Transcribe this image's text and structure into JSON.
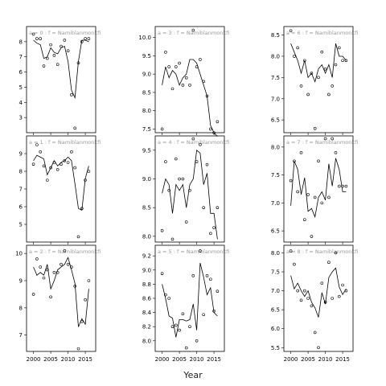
{
  "xlabel": "Year",
  "chart_data": [
    {
      "type": "scatter",
      "title": "a = 0  :  f = Namiblanmonkfi",
      "xlim": [
        1998,
        2018
      ],
      "ylim": [
        2,
        9
      ],
      "xticks": [
        2000,
        2005,
        2010,
        2015
      ],
      "yticks": [
        3,
        4,
        5,
        6,
        7,
        8
      ],
      "points": {
        "x": [
          2000,
          2001,
          2002,
          2003,
          2004,
          2005,
          2006,
          2007,
          2008,
          2009,
          2010,
          2011,
          2012,
          2013,
          2014,
          2015,
          2016
        ],
        "y": [
          8.5,
          8.2,
          8.2,
          6.4,
          6.9,
          7.8,
          7.1,
          6.5,
          7.7,
          8.1,
          7.4,
          4.5,
          2.3,
          6.6,
          8.0,
          8.2,
          8.2
        ]
      },
      "fit": {
        "x": [
          2000,
          2001,
          2002,
          2003,
          2004,
          2005,
          2006,
          2007,
          2008,
          2009,
          2010,
          2011,
          2012,
          2013,
          2014,
          2015,
          2016
        ],
        "y": [
          8.1,
          7.9,
          7.8,
          6.9,
          7.0,
          7.6,
          7.3,
          7.2,
          7.6,
          7.7,
          6.7,
          4.8,
          4.3,
          6.7,
          8.1,
          8.1,
          8.0
        ]
      }
    },
    {
      "type": "scatter",
      "title": "a = 3  :  f = Namiblanmonkfi",
      "xlim": [
        1998,
        2018
      ],
      "ylim": [
        7.4,
        10.3
      ],
      "xticks": [
        2000,
        2005,
        2010,
        2015
      ],
      "yticks": [
        7.5,
        8.0,
        8.5,
        9.0,
        9.5,
        10.0
      ],
      "points": {
        "x": [
          2000,
          2001,
          2002,
          2003,
          2004,
          2005,
          2006,
          2007,
          2008,
          2009,
          2010,
          2011,
          2012,
          2013,
          2014,
          2015,
          2016
        ],
        "y": [
          7.5,
          9.6,
          9.2,
          8.6,
          9.2,
          9.3,
          8.7,
          8.9,
          8.7,
          10.2,
          9.2,
          9.4,
          8.8,
          8.4,
          7.5,
          7.4,
          7.7
        ]
      },
      "fit": {
        "x": [
          2000,
          2001,
          2002,
          2003,
          2004,
          2005,
          2006,
          2007,
          2008,
          2009,
          2010,
          2011,
          2012,
          2013,
          2014,
          2015,
          2016
        ],
        "y": [
          8.7,
          9.2,
          8.9,
          9.1,
          9.0,
          8.7,
          8.9,
          9.0,
          9.4,
          9.4,
          9.3,
          9.0,
          8.7,
          8.4,
          7.6,
          7.4,
          7.3
        ]
      }
    },
    {
      "type": "scatter",
      "title": "a = 6  :  f = Namiblanmonkfi",
      "xlim": [
        1998,
        2018
      ],
      "ylim": [
        6.2,
        8.7
      ],
      "xticks": [
        2000,
        2005,
        2010,
        2015
      ],
      "yticks": [
        6.5,
        7.0,
        7.5,
        8.0,
        8.5
      ],
      "points": {
        "x": [
          2000,
          2001,
          2002,
          2003,
          2004,
          2005,
          2006,
          2007,
          2008,
          2009,
          2010,
          2011,
          2012,
          2013,
          2014,
          2015,
          2016
        ],
        "y": [
          8.6,
          8.0,
          8.2,
          7.3,
          7.9,
          7.1,
          7.6,
          6.3,
          7.5,
          8.1,
          7.7,
          7.1,
          7.3,
          7.8,
          8.2,
          7.9,
          7.9
        ]
      },
      "fit": {
        "x": [
          2000,
          2001,
          2002,
          2003,
          2004,
          2005,
          2006,
          2007,
          2008,
          2009,
          2010,
          2011,
          2012,
          2013,
          2014,
          2015,
          2016
        ],
        "y": [
          8.3,
          8.1,
          7.9,
          7.6,
          7.9,
          7.5,
          7.6,
          7.4,
          7.7,
          7.8,
          7.6,
          7.8,
          7.5,
          8.3,
          8.0,
          8.0,
          7.9
        ]
      }
    },
    {
      "type": "scatter",
      "title": "a = 1  :  f = Namiblanmonkfi",
      "xlim": [
        1998,
        2018
      ],
      "ylim": [
        4,
        10
      ],
      "xticks": [
        2000,
        2005,
        2010,
        2015
      ],
      "yticks": [
        5,
        6,
        7,
        8,
        9
      ],
      "points": {
        "x": [
          2000,
          2001,
          2002,
          2003,
          2004,
          2005,
          2006,
          2007,
          2008,
          2009,
          2010,
          2011,
          2012,
          2013,
          2014,
          2015,
          2016
        ],
        "y": [
          8.4,
          9.5,
          9.1,
          8.3,
          7.5,
          8.2,
          8.5,
          8.1,
          8.4,
          8.6,
          8.5,
          9.1,
          8.2,
          4.3,
          5.9,
          7.5,
          8.0
        ]
      },
      "fit": {
        "x": [
          2000,
          2001,
          2002,
          2003,
          2004,
          2005,
          2006,
          2007,
          2008,
          2009,
          2010,
          2011,
          2012,
          2013,
          2014,
          2015,
          2016
        ],
        "y": [
          8.6,
          8.9,
          8.8,
          8.7,
          7.8,
          8.2,
          8.6,
          8.3,
          8.5,
          8.6,
          8.8,
          8.6,
          7.3,
          5.9,
          5.8,
          7.6,
          8.3
        ]
      }
    },
    {
      "type": "scatter",
      "title": "a = 4  :  f = Namiblanmonkfi",
      "xlim": [
        1998,
        2018
      ],
      "ylim": [
        7.9,
        9.75
      ],
      "xticks": [
        2000,
        2005,
        2010,
        2015
      ],
      "yticks": [
        8.0,
        8.5,
        9.0,
        9.5
      ],
      "points": {
        "x": [
          2000,
          2001,
          2002,
          2003,
          2004,
          2005,
          2006,
          2007,
          2008,
          2009,
          2010,
          2011,
          2012,
          2013,
          2014,
          2015,
          2016
        ],
        "y": [
          8.1,
          9.3,
          8.8,
          7.95,
          9.35,
          9.0,
          9.0,
          8.25,
          8.8,
          9.7,
          9.3,
          9.6,
          8.5,
          9.25,
          8.05,
          8.15,
          8.5
        ]
      },
      "fit": {
        "x": [
          2000,
          2001,
          2002,
          2003,
          2004,
          2005,
          2006,
          2007,
          2008,
          2009,
          2010,
          2011,
          2012,
          2013,
          2014,
          2015,
          2016
        ],
        "y": [
          8.75,
          9.0,
          8.9,
          8.4,
          8.9,
          8.8,
          8.9,
          8.5,
          8.9,
          9.0,
          9.5,
          9.45,
          8.9,
          9.1,
          8.4,
          8.4,
          7.95
        ]
      }
    },
    {
      "type": "scatter",
      "title": "a = 7  :  f = Namiblanmonkfi",
      "xlim": [
        1998,
        2018
      ],
      "ylim": [
        6.3,
        8.2
      ],
      "xticks": [
        2000,
        2005,
        2010,
        2015
      ],
      "yticks": [
        6.5,
        7.0,
        7.5,
        8.0
      ],
      "points": {
        "x": [
          2000,
          2001,
          2002,
          2003,
          2004,
          2005,
          2006,
          2007,
          2008,
          2009,
          2010,
          2011,
          2012,
          2013,
          2014,
          2015,
          2016
        ],
        "y": [
          7.4,
          7.75,
          7.2,
          7.9,
          6.7,
          7.15,
          6.4,
          7.1,
          7.75,
          7.0,
          8.15,
          7.1,
          8.15,
          7.9,
          7.3,
          7.3,
          7.3
        ]
      },
      "fit": {
        "x": [
          2000,
          2001,
          2002,
          2003,
          2004,
          2005,
          2006,
          2007,
          2008,
          2009,
          2010,
          2011,
          2012,
          2013,
          2014,
          2015,
          2016
        ],
        "y": [
          6.95,
          7.75,
          7.6,
          7.15,
          7.45,
          6.85,
          6.9,
          6.75,
          7.1,
          7.2,
          7.05,
          7.7,
          7.3,
          7.8,
          7.6,
          7.2,
          7.2
        ]
      }
    },
    {
      "type": "scatter",
      "title": "a = 2  :  f = Namiblanmonkfi",
      "xlim": [
        1998,
        2018
      ],
      "ylim": [
        6.4,
        10.3
      ],
      "xticks": [
        2000,
        2005,
        2010,
        2015
      ],
      "yticks": [
        7,
        8,
        9,
        10
      ],
      "points": {
        "x": [
          2000,
          2001,
          2002,
          2003,
          2004,
          2005,
          2006,
          2007,
          2008,
          2009,
          2010,
          2011,
          2012,
          2013,
          2014,
          2015,
          2016
        ],
        "y": [
          8.5,
          9.8,
          9.5,
          9.1,
          9.4,
          8.4,
          9.3,
          9.3,
          9.6,
          10.1,
          9.6,
          9.5,
          8.8,
          6.5,
          7.5,
          8.3,
          9.0
        ]
      },
      "fit": {
        "x": [
          2000,
          2001,
          2002,
          2003,
          2004,
          2005,
          2006,
          2007,
          2008,
          2009,
          2010,
          2011,
          2012,
          2013,
          2014,
          2015,
          2016
        ],
        "y": [
          9.5,
          9.2,
          9.3,
          9.2,
          9.6,
          8.7,
          9.0,
          9.4,
          9.5,
          9.6,
          9.85,
          9.4,
          8.9,
          7.3,
          7.6,
          7.4,
          8.7
        ]
      }
    },
    {
      "type": "scatter",
      "title": "a = 5  :  f = Namiblanmonkfi",
      "xlim": [
        1998,
        2018
      ],
      "ylim": [
        7.85,
        9.35
      ],
      "xticks": [
        2000,
        2005,
        2010,
        2015
      ],
      "yticks": [
        8.0,
        8.2,
        8.4,
        8.6,
        8.8,
        9.0,
        9.2
      ],
      "points": {
        "x": [
          2000,
          2001,
          2002,
          2003,
          2004,
          2005,
          2006,
          2007,
          2008,
          2009,
          2010,
          2011,
          2012,
          2013,
          2014,
          2015,
          2016
        ],
        "y": [
          8.95,
          8.65,
          8.6,
          8.2,
          8.22,
          8.15,
          8.38,
          7.9,
          8.2,
          8.92,
          8.0,
          9.27,
          8.37,
          8.92,
          8.87,
          8.42,
          8.7
        ]
      },
      "fit": {
        "x": [
          2000,
          2001,
          2002,
          2003,
          2004,
          2005,
          2006,
          2007,
          2008,
          2009,
          2010,
          2011,
          2012,
          2013,
          2014,
          2015,
          2016
        ],
        "y": [
          8.8,
          8.6,
          8.35,
          8.32,
          8.05,
          8.3,
          8.3,
          8.28,
          8.3,
          8.52,
          8.15,
          9.1,
          8.9,
          8.65,
          8.75,
          8.4,
          8.35
        ]
      }
    },
    {
      "type": "scatter",
      "title": "a = 8  :  f = Namiblanmonkfi",
      "xlim": [
        1998,
        2018
      ],
      "ylim": [
        5.4,
        8.2
      ],
      "xticks": [
        2000,
        2005,
        2010,
        2015
      ],
      "yticks": [
        5.5,
        6.0,
        6.5,
        7.0,
        7.5,
        8.0
      ],
      "points": {
        "x": [
          2000,
          2001,
          2002,
          2003,
          2004,
          2005,
          2006,
          2007,
          2008,
          2009,
          2010,
          2011,
          2012,
          2013,
          2014,
          2015,
          2016
        ],
        "y": [
          8.05,
          7.7,
          7.0,
          6.75,
          7.0,
          6.8,
          6.6,
          5.9,
          5.5,
          7.2,
          6.7,
          7.75,
          6.8,
          8.0,
          6.85,
          7.15,
          7.0
        ]
      },
      "fit": {
        "x": [
          2000,
          2001,
          2002,
          2003,
          2004,
          2005,
          2006,
          2007,
          2008,
          2009,
          2010,
          2011,
          2012,
          2013,
          2014,
          2015,
          2016
        ],
        "y": [
          7.4,
          7.05,
          7.2,
          7.0,
          6.85,
          7.0,
          6.7,
          6.55,
          6.3,
          6.95,
          6.65,
          7.35,
          7.5,
          7.6,
          7.1,
          6.9,
          7.05
        ]
      }
    }
  ]
}
